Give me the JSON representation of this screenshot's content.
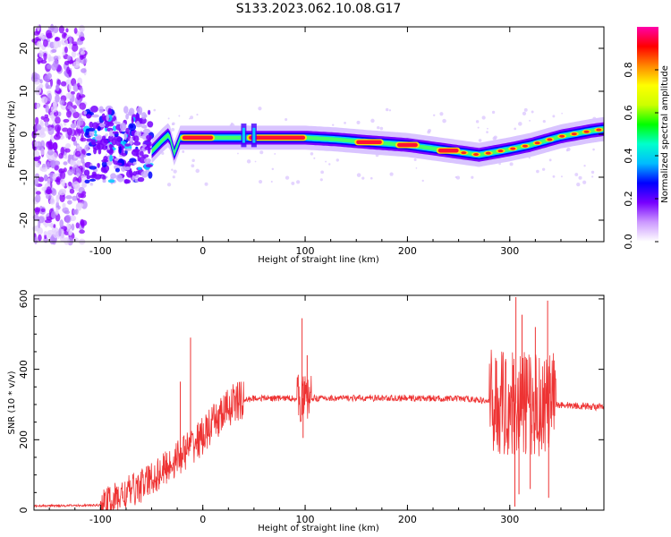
{
  "title": "S133.2023.062.10.08.G17",
  "chart_data": [
    {
      "type": "heatmap",
      "title": "S133.2023.062.10.08.G17",
      "xlabel": "Height of straight line (km)",
      "ylabel": "Frequency (Hz)",
      "xlim": [
        -165,
        392
      ],
      "ylim": [
        -25,
        25
      ],
      "x_ticks": [
        -100,
        0,
        100,
        200,
        300
      ],
      "y_ticks": [
        -20,
        -10,
        0,
        10,
        20
      ],
      "colorbar": {
        "label": "Normalized spectral amplitude",
        "range": [
          0,
          1
        ],
        "ticks": [
          0.0,
          0.2,
          0.4,
          0.6,
          0.8
        ],
        "colors": [
          "#ffffff",
          "#cc99ff",
          "#7700ff",
          "#0000ff",
          "#00bbff",
          "#00ffcc",
          "#00ff00",
          "#ccff00",
          "#ffff00",
          "#ff8800",
          "#ff0000",
          "#ff00aa"
        ]
      },
      "ridge": [
        {
          "x": -50,
          "f": -4.0
        },
        {
          "x": -40,
          "f": -1.5
        },
        {
          "x": -33,
          "f": 0.0
        },
        {
          "x": -28,
          "f": -4.5
        },
        {
          "x": -22,
          "f": -0.8
        },
        {
          "x": 0,
          "f": -0.8
        },
        {
          "x": 40,
          "f": -0.8
        },
        {
          "x": 100,
          "f": -0.8
        },
        {
          "x": 130,
          "f": -1.2
        },
        {
          "x": 160,
          "f": -1.8
        },
        {
          "x": 200,
          "f": -2.5
        },
        {
          "x": 240,
          "f": -3.8
        },
        {
          "x": 270,
          "f": -4.8
        },
        {
          "x": 300,
          "f": -3.5
        },
        {
          "x": 320,
          "f": -2.5
        },
        {
          "x": 350,
          "f": -0.5
        },
        {
          "x": 380,
          "f": 0.8
        },
        {
          "x": 392,
          "f": 1.2
        }
      ],
      "peak_segments": [
        [
          -20,
          10
        ],
        [
          45,
          100
        ],
        [
          150,
          175
        ],
        [
          190,
          210
        ],
        [
          230,
          250
        ]
      ]
    },
    {
      "type": "line",
      "xlabel": "Height of straight line (km)",
      "ylabel": "SNR (10 * v/v)",
      "xlim": [
        -165,
        392
      ],
      "ylim": [
        0,
        610
      ],
      "x_ticks": [
        -100,
        0,
        100,
        200,
        300
      ],
      "y_ticks": [
        0,
        200,
        400,
        600
      ],
      "color": "#ee3333",
      "envelope": [
        {
          "x": -165,
          "y": 12
        },
        {
          "x": -100,
          "y": 14
        },
        {
          "x": -80,
          "y": 40
        },
        {
          "x": -60,
          "y": 70
        },
        {
          "x": -40,
          "y": 110
        },
        {
          "x": -20,
          "y": 160
        },
        {
          "x": 0,
          "y": 210
        },
        {
          "x": 15,
          "y": 260
        },
        {
          "x": 30,
          "y": 305
        },
        {
          "x": 50,
          "y": 318
        },
        {
          "x": 100,
          "y": 318
        },
        {
          "x": 200,
          "y": 318
        },
        {
          "x": 260,
          "y": 316
        },
        {
          "x": 290,
          "y": 305
        },
        {
          "x": 345,
          "y": 300
        },
        {
          "x": 392,
          "y": 292
        }
      ],
      "spikes": [
        {
          "x": -12,
          "y": 490
        },
        {
          "x": -22,
          "y": 365
        },
        {
          "x": 97,
          "y": 545
        },
        {
          "x": 102,
          "y": 440
        },
        {
          "x": 306,
          "y": 605
        },
        {
          "x": 312,
          "y": 555
        },
        {
          "x": 325,
          "y": 520
        },
        {
          "x": 337,
          "y": 595
        }
      ],
      "dips": [
        {
          "x": 98,
          "y": 205
        },
        {
          "x": 305,
          "y": 10
        },
        {
          "x": 309,
          "y": 45
        },
        {
          "x": 320,
          "y": 60
        },
        {
          "x": 338,
          "y": 35
        }
      ]
    }
  ]
}
